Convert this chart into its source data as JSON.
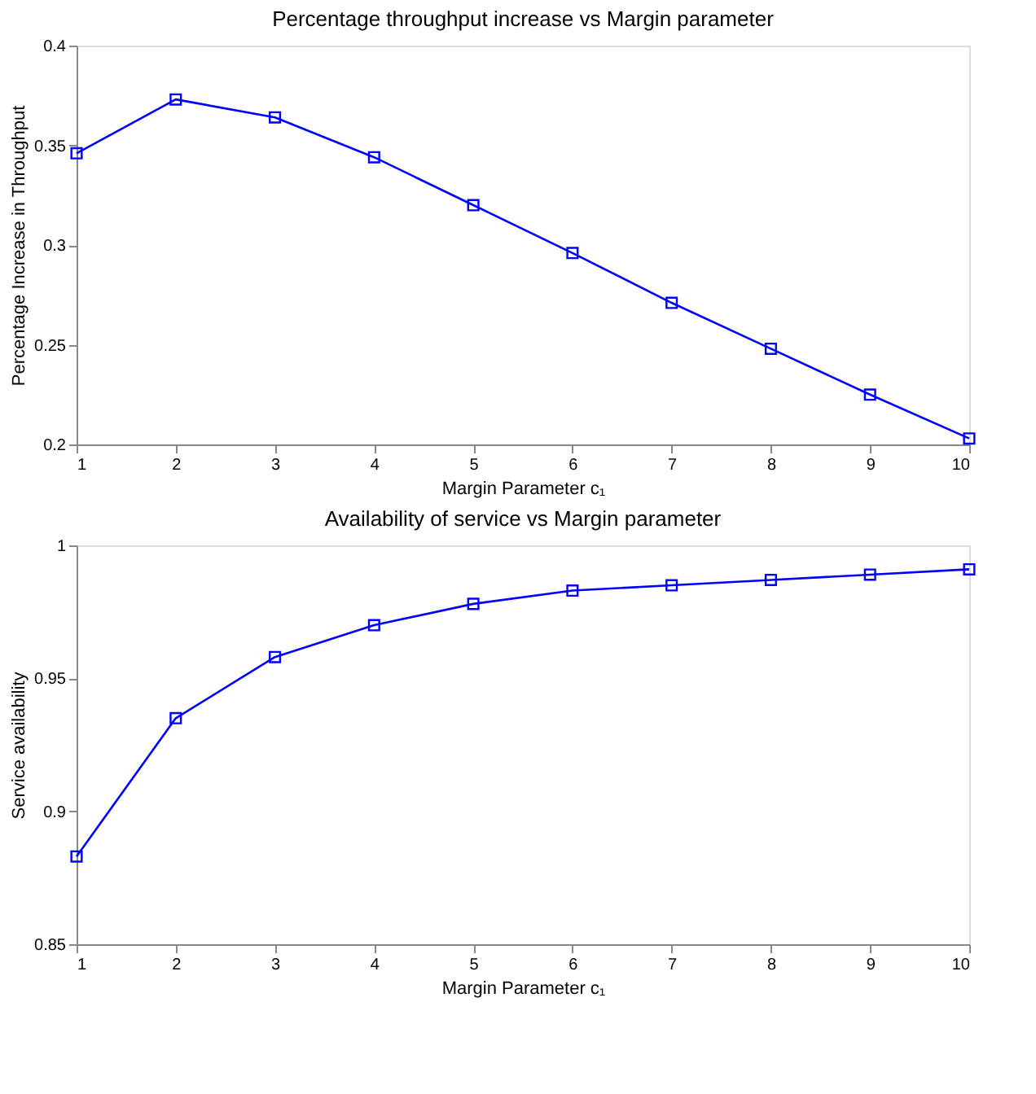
{
  "chart_data": [
    {
      "type": "line",
      "title": "Percentage throughput increase vs Margin parameter",
      "xlabel": "Margin Parameter c₁",
      "ylabel": "Percentage Increase in Throughput",
      "x": [
        1,
        2,
        3,
        4,
        5,
        6,
        7,
        8,
        9,
        10
      ],
      "series": [
        {
          "color": "#0000ff",
          "values": [
            0.346,
            0.373,
            0.364,
            0.344,
            0.32,
            0.296,
            0.271,
            0.248,
            0.225,
            0.203
          ]
        }
      ],
      "xlim": [
        1,
        10
      ],
      "xticks": [
        1,
        2,
        3,
        4,
        5,
        6,
        7,
        8,
        9,
        10
      ],
      "ylim": [
        0.2,
        0.4
      ],
      "yticks": [
        0.2,
        0.25,
        0.3,
        0.35,
        0.4
      ],
      "grid": false,
      "marker": "square",
      "line_style": "solid"
    },
    {
      "type": "line",
      "title": "Availability of service vs Margin parameter",
      "xlabel": "Margin Parameter c₁",
      "ylabel": "Service availability",
      "x": [
        1,
        2,
        3,
        4,
        5,
        6,
        7,
        8,
        9,
        10
      ],
      "series": [
        {
          "color": "#0000ff",
          "values": [
            0.883,
            0.935,
            0.958,
            0.97,
            0.978,
            0.983,
            0.985,
            0.987,
            0.989,
            0.991
          ]
        }
      ],
      "xlim": [
        1,
        10
      ],
      "xticks": [
        1,
        2,
        3,
        4,
        5,
        6,
        7,
        8,
        9,
        10
      ],
      "ylim": [
        0.85,
        1
      ],
      "yticks": [
        0.85,
        0.9,
        0.95,
        1
      ],
      "grid": false,
      "marker": "square",
      "line_style": "solid"
    }
  ]
}
